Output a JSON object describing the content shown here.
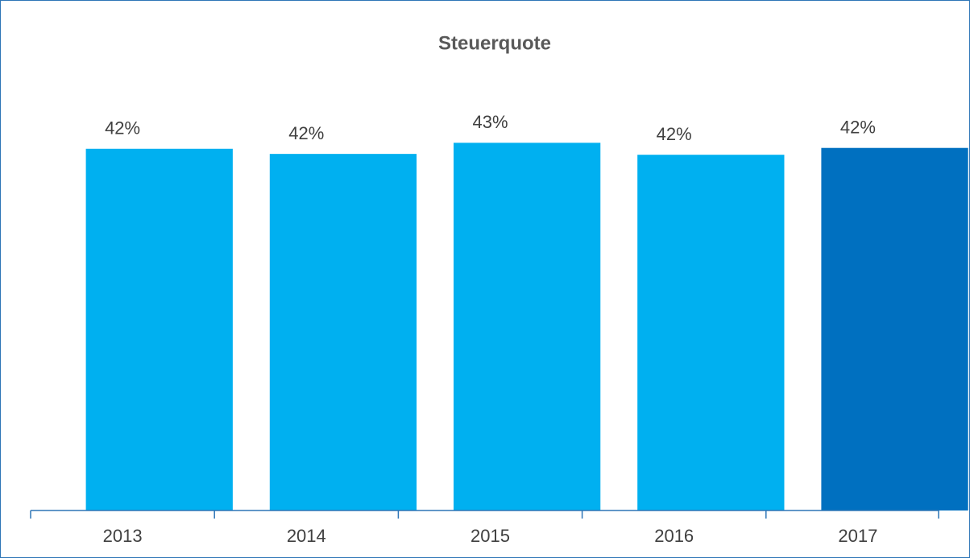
{
  "chart_data": {
    "type": "bar",
    "title": "Steuerquote",
    "categories": [
      "2013",
      "2014",
      "2015",
      "2016",
      "2017"
    ],
    "values": [
      42.3,
      41.7,
      43.0,
      41.6,
      42.4
    ],
    "value_labels": [
      "42%",
      "42%",
      "43%",
      "42%",
      "42%"
    ],
    "colors": [
      "#00b0f0",
      "#00b0f0",
      "#00b0f0",
      "#00b0f0",
      "#0070c0"
    ],
    "ylim": [
      0,
      50
    ]
  }
}
